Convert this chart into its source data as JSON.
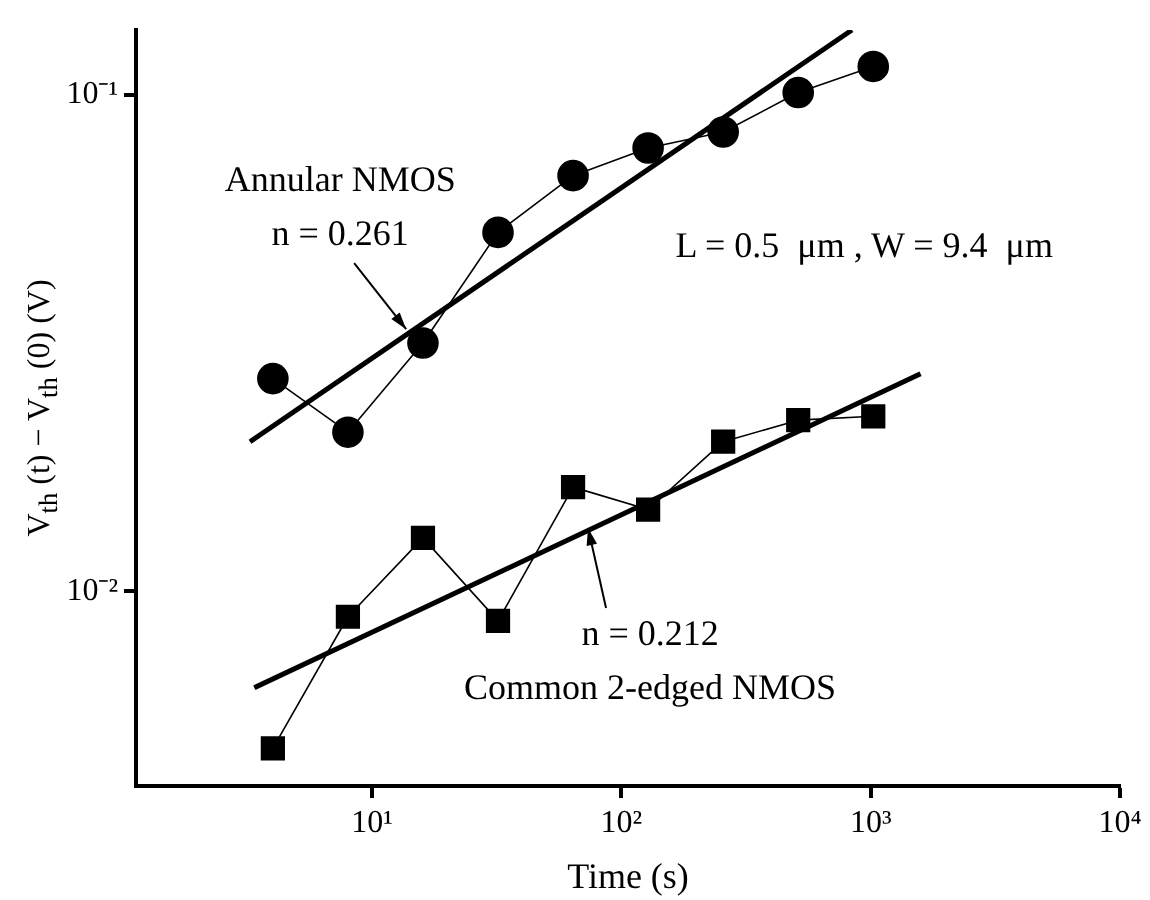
{
  "chart_data": {
    "type": "line",
    "xlabel": "Time (s)",
    "ylabel": "V$_{th}$ (t) − V$_{th}$ (0) (V)",
    "log": "xy",
    "grid": false,
    "legend": false,
    "xlim": [
      1.13,
      10000
    ],
    "ylim": [
      0.00405,
      0.135
    ],
    "xticks": [
      {
        "value": 10,
        "label": "10¹"
      },
      {
        "value": 100,
        "label": "10²"
      },
      {
        "value": 1000,
        "label": "10³"
      },
      {
        "value": 10000,
        "label": "10⁴"
      }
    ],
    "yticks": [
      {
        "value": 0.01,
        "label": "10⁻²"
      },
      {
        "value": 0.1,
        "label": "10⁻¹"
      }
    ],
    "series": [
      {
        "color": "#000000",
        "marker": "circle",
        "x": [
          4,
          8,
          16,
          32,
          64,
          128,
          256,
          512,
          1024
        ],
        "values": [
          0.0268,
          0.0209,
          0.0316,
          0.0528,
          0.0687,
          0.0781,
          0.0841,
          0.101,
          0.114
        ]
      },
      {
        "color": "#000000",
        "marker": "square",
        "x": [
          4,
          8,
          16,
          32,
          64,
          128,
          256,
          512,
          1024
        ],
        "values": [
          0.00482,
          0.00888,
          0.0128,
          0.00871,
          0.0162,
          0.0146,
          0.02,
          0.0221,
          0.0225
        ]
      },
      {
        "color": "#000000",
        "marker": "none",
        "x": [
          3.24,
          841
        ],
        "values": [
          0.02,
          0.135
        ]
      },
      {
        "color": "#000000",
        "marker": "none",
        "x": [
          3.37,
          1585
        ],
        "values": [
          0.00639,
          0.0274
        ]
      }
    ],
    "annotations": [
      {
        "text": "Annular NMOS\nn = 0.261",
        "x": 13.7,
        "y": 0.0337
      },
      "L = 0.5  μm , W = 9.4  μm",
      {
        "text": "n = 0.212\nCommon 2-edged NMOS",
        "x": 73.5,
        "y": 0.0134
      }
    ]
  }
}
